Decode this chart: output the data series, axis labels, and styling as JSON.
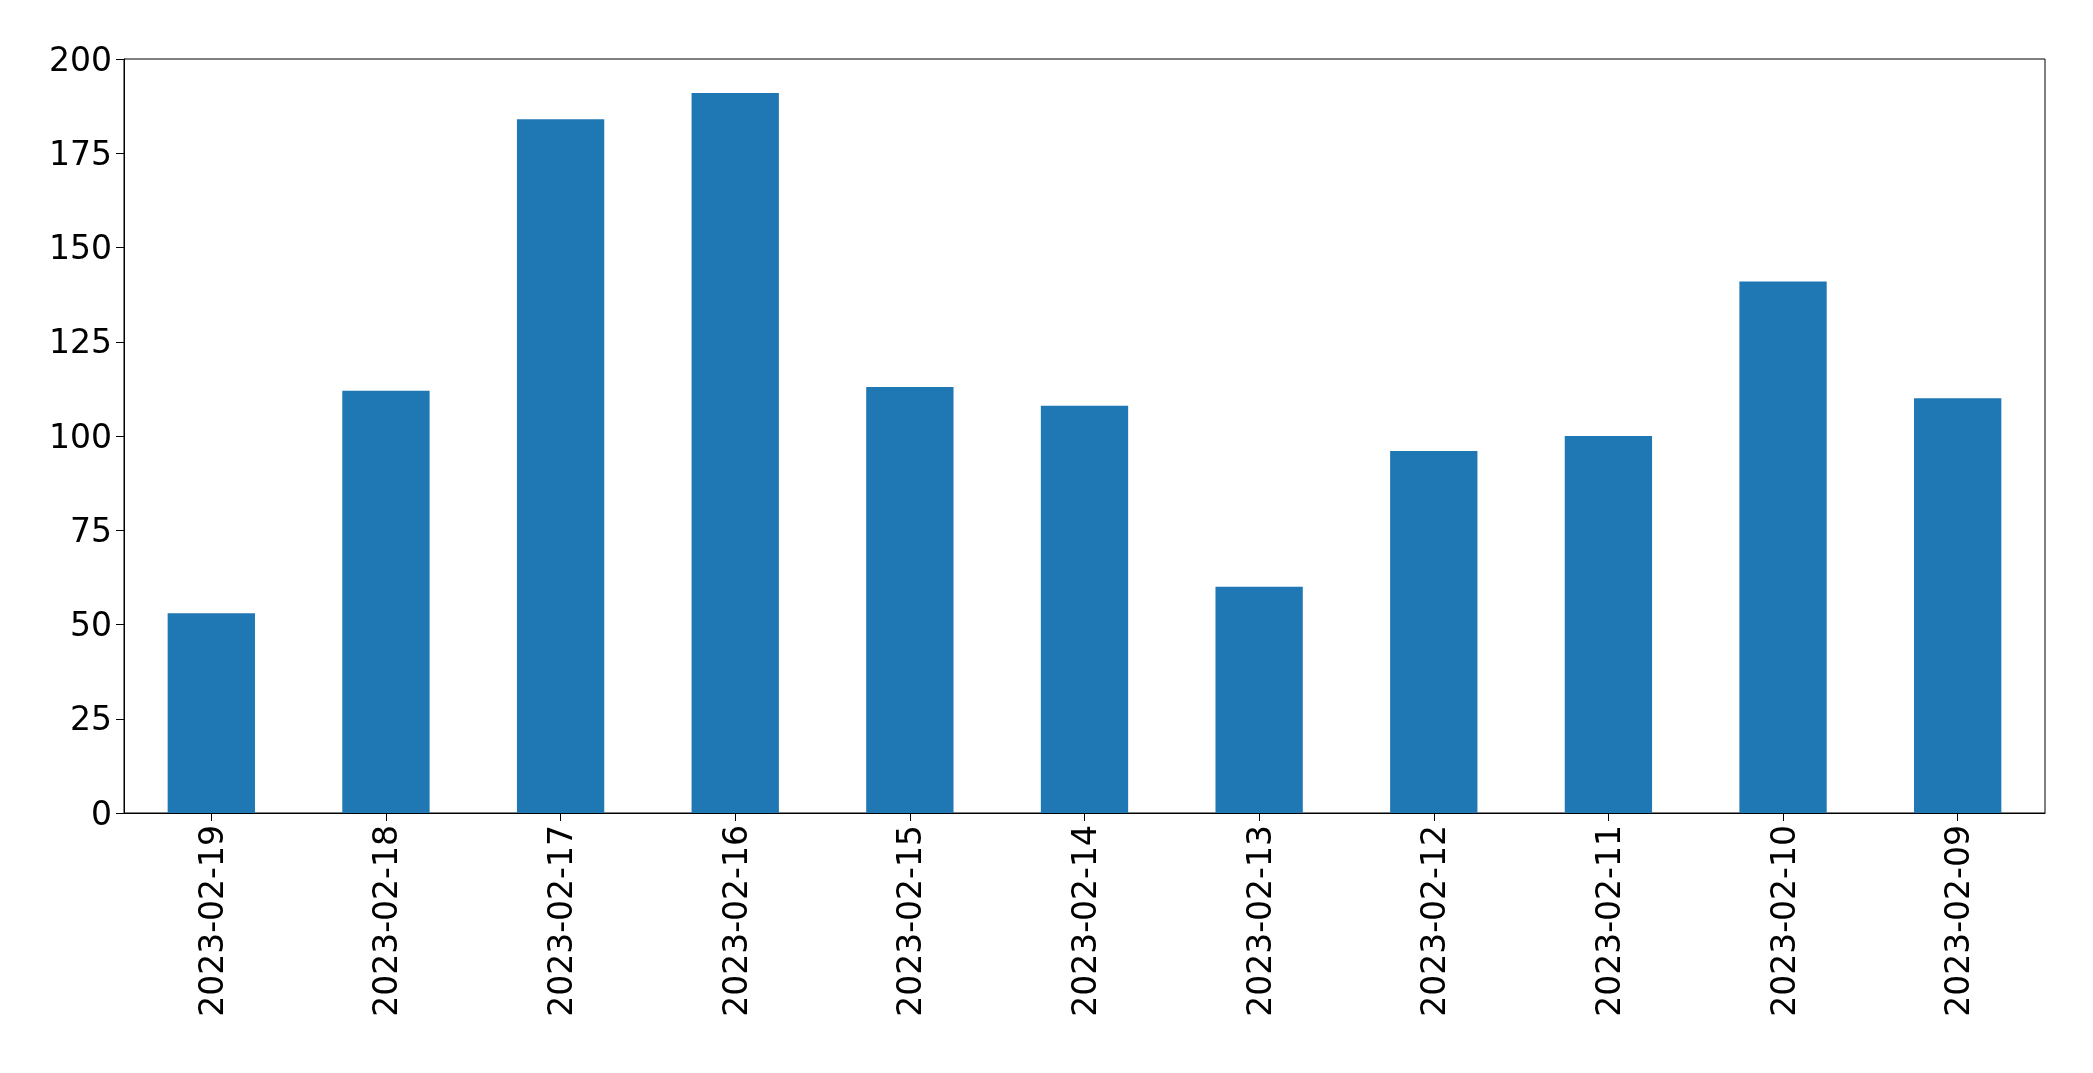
{
  "chart_data": {
    "type": "bar",
    "categories": [
      "2023-02-19",
      "2023-02-18",
      "2023-02-17",
      "2023-02-16",
      "2023-02-15",
      "2023-02-14",
      "2023-02-13",
      "2023-02-12",
      "2023-02-11",
      "2023-02-10",
      "2023-02-09"
    ],
    "values": [
      53,
      112,
      184,
      191,
      113,
      108,
      60,
      96,
      100,
      141,
      110
    ],
    "color": "#1f77b4",
    "ylim": [
      0,
      200
    ],
    "yticks": [
      0,
      25,
      50,
      75,
      100,
      125,
      150,
      175,
      200
    ],
    "grid": false
  }
}
